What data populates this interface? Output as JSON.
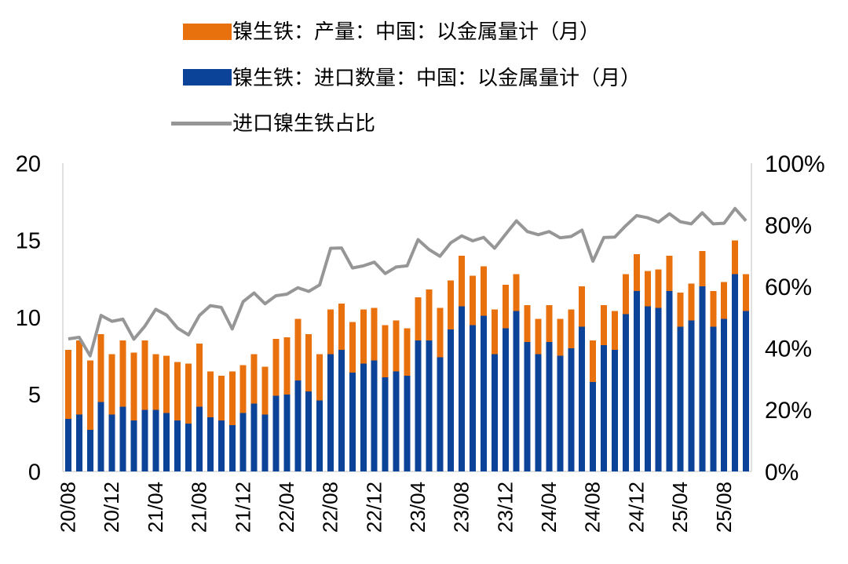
{
  "legend": {
    "items": [
      {
        "label": "镍生铁：产量：中国：以金属量计（月）",
        "swatch": "bar",
        "color": "#E8710E"
      },
      {
        "label": "镍生铁：进口数量：中国：以金属量计（月）",
        "swatch": "bar",
        "color": "#0B4398"
      },
      {
        "label": "进口镍生铁占比",
        "swatch": "line",
        "color": "#969696"
      }
    ]
  },
  "colors": {
    "production": "#E8710E",
    "import": "#0B4398",
    "share_line": "#969696",
    "axis_line": "#D6D6D6",
    "text": "#000000",
    "background": "#FFFFFF"
  },
  "chart_data": {
    "type": "bar",
    "subtype": "stacked-bars-with-line-overlay",
    "title": "",
    "grid": false,
    "legend_position": "top-left",
    "x": [
      "20/08",
      "20/09",
      "20/10",
      "20/11",
      "20/12",
      "21/01",
      "21/02",
      "21/03",
      "21/04",
      "21/05",
      "21/06",
      "21/07",
      "21/08",
      "21/09",
      "21/10",
      "21/11",
      "21/12",
      "22/01",
      "22/02",
      "22/03",
      "22/04",
      "22/05",
      "22/06",
      "22/07",
      "22/08",
      "22/09",
      "22/10",
      "22/11",
      "22/12",
      "23/01",
      "23/02",
      "23/03",
      "23/04",
      "23/05",
      "23/06",
      "23/07",
      "23/08",
      "23/09",
      "23/10",
      "23/11",
      "23/12",
      "24/01",
      "24/02",
      "24/03",
      "24/04",
      "24/05",
      "24/06",
      "24/07",
      "24/08",
      "24/09",
      "24/10",
      "24/11",
      "24/12",
      "25/01",
      "25/02",
      "25/03",
      "25/04",
      "25/05",
      "25/06",
      "25/07",
      "25/08",
      "25/09",
      "25/10"
    ],
    "x_tick_labels": [
      "20/08",
      "20/12",
      "21/04",
      "21/08",
      "21/12",
      "22/04",
      "22/08",
      "22/12",
      "23/04",
      "23/08",
      "23/12",
      "24/04",
      "24/08",
      "24/12",
      "25/04",
      "25/08"
    ],
    "x_tick_every": 4,
    "left_axis": {
      "range": [
        0,
        20
      ],
      "ticks": [
        0,
        5,
        10,
        15,
        20
      ]
    },
    "right_axis": {
      "range": [
        0,
        100
      ],
      "ticks": [
        "0%",
        "20%",
        "40%",
        "60%",
        "80%",
        "100%"
      ],
      "unit": "%"
    },
    "series": [
      {
        "name": "镍生铁：产量：中国：以金属量计（月）",
        "type": "bar",
        "stack": "total",
        "stack_order": "top",
        "axis": "left",
        "color": "#E8710E",
        "values": [
          4.5,
          4.8,
          4.5,
          4.4,
          3.9,
          4.3,
          4.4,
          4.5,
          3.6,
          3.7,
          3.8,
          3.9,
          4.1,
          3.0,
          2.9,
          3.5,
          3.1,
          3.2,
          3.1,
          3.7,
          3.7,
          4.0,
          3.7,
          3.0,
          2.9,
          3.0,
          3.3,
          3.5,
          3.4,
          3.4,
          3.3,
          3.1,
          2.8,
          3.3,
          3.2,
          3.2,
          3.3,
          3.2,
          3.2,
          2.9,
          2.8,
          2.4,
          2.4,
          2.3,
          2.4,
          2.4,
          2.5,
          2.6,
          2.7,
          2.6,
          2.5,
          2.6,
          2.4,
          2.3,
          2.5,
          2.3,
          2.2,
          2.4,
          2.3,
          2.3,
          2.4,
          2.2,
          2.4
        ]
      },
      {
        "name": "镍生铁：进口数量：中国：以金属量计（月）",
        "type": "bar",
        "stack": "total",
        "stack_order": "bottom",
        "axis": "left",
        "color": "#0B4398",
        "values": [
          3.4,
          3.7,
          2.7,
          4.5,
          3.7,
          4.2,
          3.3,
          4.0,
          4.0,
          3.8,
          3.3,
          3.1,
          4.2,
          3.5,
          3.3,
          3.0,
          3.8,
          4.4,
          3.7,
          4.9,
          5.0,
          5.9,
          5.2,
          4.6,
          7.6,
          7.9,
          6.4,
          7.0,
          7.2,
          6.1,
          6.5,
          6.2,
          8.5,
          8.5,
          7.4,
          9.2,
          10.7,
          9.5,
          10.1,
          7.6,
          9.3,
          10.4,
          8.4,
          7.6,
          8.4,
          7.5,
          8.0,
          9.4,
          5.8,
          8.2,
          7.9,
          10.2,
          11.7,
          10.7,
          10.6,
          11.7,
          9.4,
          9.8,
          12.0,
          9.4,
          9.9,
          12.8,
          10.4
        ]
      },
      {
        "name": "进口镍生铁占比",
        "type": "line",
        "axis": "right",
        "color": "#969696",
        "unit": "%",
        "values": [
          43.0,
          43.5,
          37.5,
          50.6,
          48.7,
          49.4,
          42.9,
          47.1,
          52.6,
          50.7,
          46.5,
          44.3,
          50.6,
          53.8,
          53.2,
          46.2,
          55.1,
          57.9,
          54.4,
          57.0,
          57.5,
          59.6,
          58.4,
          60.5,
          72.4,
          72.5,
          66.0,
          66.7,
          67.9,
          64.2,
          66.3,
          66.7,
          75.2,
          72.0,
          69.8,
          74.2,
          76.4,
          74.8,
          75.9,
          72.4,
          76.9,
          81.3,
          77.8,
          76.8,
          77.8,
          75.8,
          76.2,
          78.3,
          68.2,
          75.9,
          76.0,
          79.7,
          83.0,
          82.3,
          80.9,
          83.6,
          81.0,
          80.3,
          83.9,
          80.3,
          80.5,
          85.3,
          81.3
        ]
      }
    ]
  }
}
